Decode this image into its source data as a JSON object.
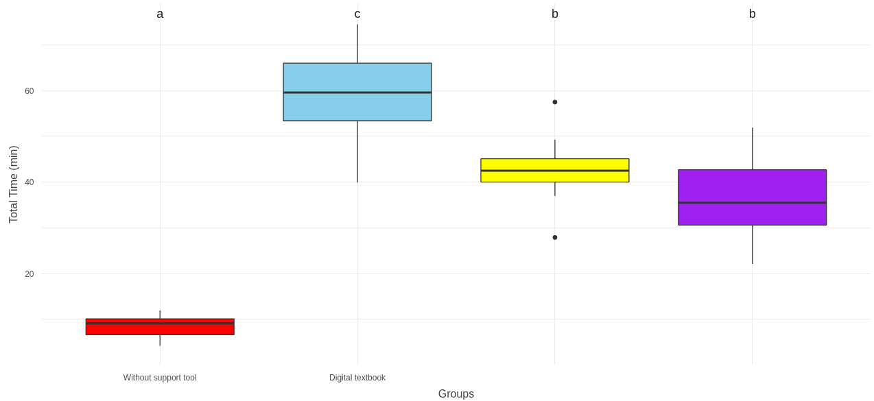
{
  "chart_data": {
    "type": "box",
    "xlabel": "Groups",
    "ylabel": "Total Time (min)",
    "categories": [
      "Without support tool",
      "Digital textbook",
      null,
      null
    ],
    "colors": [
      "#ff0000",
      "#87ceeb",
      "#ffff00",
      "#a020f0"
    ],
    "boxes": [
      {
        "low": 4.2,
        "q1": 6.6,
        "median": 9.1,
        "q3": 10.1,
        "high": 11.9
      },
      {
        "low": 39.9,
        "q1": 53.4,
        "median": 59.6,
        "q3": 66.0,
        "high": 74.5
      },
      {
        "low": 37.0,
        "q1": 40.0,
        "median": 42.5,
        "q3": 45.1,
        "high": 49.3,
        "outliers": [
          57.5,
          27.9
        ]
      },
      {
        "low": 22.1,
        "q1": 30.6,
        "median": 35.5,
        "q3": 42.7,
        "high": 51.9
      }
    ],
    "ylim": [
      0,
      79
    ],
    "yticks": [
      {
        "value": 10,
        "label": null
      },
      20,
      {
        "value": 30,
        "label": null
      },
      40,
      {
        "value": 50,
        "label": null
      },
      60,
      {
        "value": 70,
        "label": null
      }
    ],
    "grid": true,
    "annotations": [
      "a",
      "c",
      "b",
      "b"
    ]
  }
}
